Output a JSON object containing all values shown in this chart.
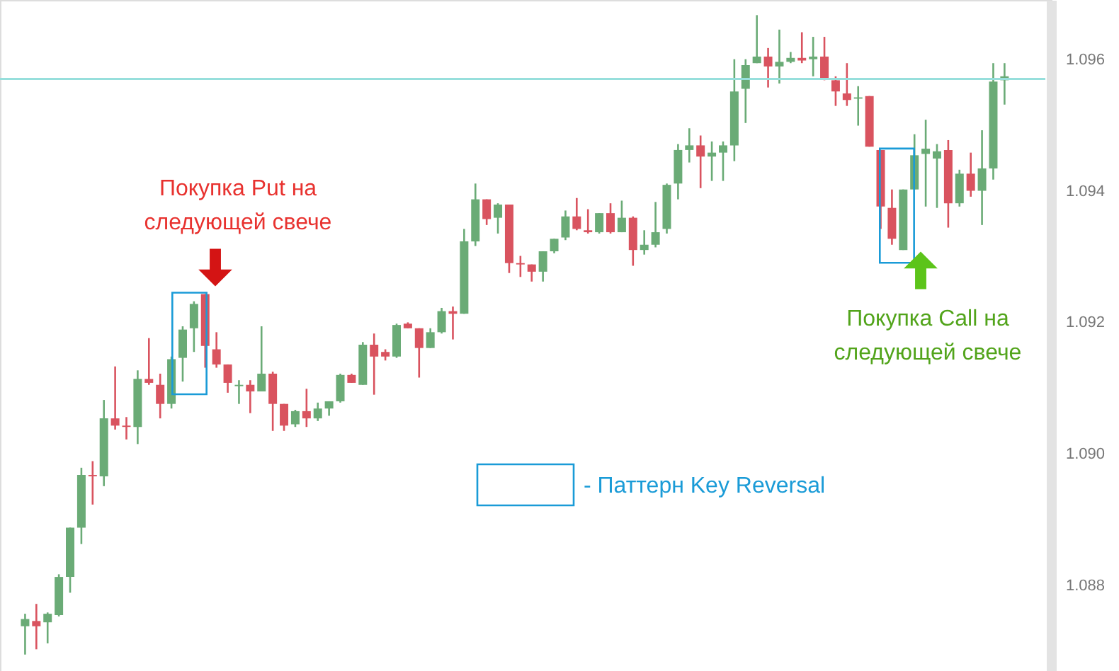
{
  "chart_data": {
    "type": "candlestick",
    "categories": [
      null,
      null,
      null,
      null,
      null,
      null,
      null,
      null,
      null,
      null,
      null,
      null,
      null,
      null,
      null,
      null,
      null,
      null,
      null,
      null,
      null,
      null,
      null,
      null,
      null,
      null,
      null,
      null,
      null,
      null,
      null,
      null,
      null,
      null,
      null,
      null,
      null,
      null,
      null,
      null,
      null,
      null,
      null,
      null,
      null,
      null,
      null,
      null,
      null,
      null,
      null,
      null,
      null,
      null,
      null,
      null,
      null,
      null,
      null,
      null,
      null,
      null,
      null,
      null,
      null,
      null,
      null,
      null,
      null,
      null,
      null,
      null,
      null,
      null,
      null,
      null,
      null,
      null,
      null,
      null,
      null,
      null,
      null,
      null,
      null,
      null,
      null,
      null
    ],
    "ohlc": [
      [
        1.08738,
        1.08757,
        1.08695,
        1.08749
      ],
      [
        1.08746,
        1.08772,
        1.08703,
        1.08738
      ],
      [
        1.08744,
        1.08759,
        1.08712,
        1.08757
      ],
      [
        1.08755,
        1.08817,
        1.08753,
        1.08813
      ],
      [
        1.08813,
        1.08888,
        1.08789,
        1.08888
      ],
      [
        1.08888,
        1.08979,
        1.08863,
        1.08968
      ],
      [
        1.08968,
        1.08989,
        1.08923,
        1.08966
      ],
      [
        1.08966,
        1.09082,
        1.08951,
        1.09054
      ],
      [
        1.09054,
        1.09133,
        1.09037,
        1.09043
      ],
      [
        1.09043,
        1.09056,
        1.09022,
        1.09041
      ],
      [
        1.09041,
        1.09127,
        1.09015,
        1.09114
      ],
      [
        1.09114,
        1.09176,
        1.09105,
        1.09108
      ],
      [
        1.09105,
        1.09122,
        1.09054,
        1.09076
      ],
      [
        1.09076,
        1.09148,
        1.09069,
        1.09144
      ],
      [
        1.09146,
        1.09194,
        1.0911,
        1.09189
      ],
      [
        1.09191,
        1.09232,
        1.09155,
        1.09228
      ],
      [
        1.09243,
        1.09243,
        1.09131,
        1.09164
      ],
      [
        1.09159,
        1.09185,
        1.09131,
        1.09136
      ],
      [
        1.09136,
        1.09136,
        1.09093,
        1.09108
      ],
      [
        1.09103,
        1.09112,
        1.09076,
        1.09105
      ],
      [
        1.09105,
        1.09112,
        1.09062,
        1.09095
      ],
      [
        1.09095,
        1.09194,
        1.09095,
        1.09122
      ],
      [
        1.09122,
        1.09125,
        1.09035,
        1.09076
      ],
      [
        1.09076,
        1.09076,
        1.09035,
        1.09043
      ],
      [
        1.09045,
        1.09067,
        1.09041,
        1.09065
      ],
      [
        1.09065,
        1.09099,
        1.09041,
        1.09054
      ],
      [
        1.09054,
        1.09078,
        1.0905,
        1.09069
      ],
      [
        1.09069,
        1.0908,
        1.09058,
        1.0908
      ],
      [
        1.0908,
        1.09122,
        1.09078,
        1.0912
      ],
      [
        1.0912,
        1.09122,
        1.09108,
        1.09108
      ],
      [
        1.09105,
        1.0917,
        1.09105,
        1.09166
      ],
      [
        1.09166,
        1.09183,
        1.0909,
        1.09148
      ],
      [
        1.09155,
        1.09159,
        1.09142,
        1.09148
      ],
      [
        1.09148,
        1.09198,
        1.09146,
        1.09196
      ],
      [
        1.09198,
        1.092,
        1.09191,
        1.09191
      ],
      [
        1.09191,
        1.09191,
        1.09116,
        1.09161
      ],
      [
        1.09161,
        1.09191,
        1.09161,
        1.09185
      ],
      [
        1.09185,
        1.09222,
        1.09183,
        1.09217
      ],
      [
        1.09217,
        1.09224,
        1.09174,
        1.09213
      ],
      [
        1.09213,
        1.09342,
        1.09213,
        1.09323
      ],
      [
        1.09323,
        1.09411,
        1.09316,
        1.09387
      ],
      [
        1.09387,
        1.09387,
        1.09348,
        1.09357
      ],
      [
        1.09359,
        1.09381,
        1.09335,
        1.09379
      ],
      [
        1.09379,
        1.09379,
        1.09275,
        1.0929
      ],
      [
        1.0929,
        1.09301,
        1.09269,
        1.09288
      ],
      [
        1.09288,
        1.09288,
        1.09262,
        1.09277
      ],
      [
        1.09277,
        1.09308,
        1.09262,
        1.09308
      ],
      [
        1.09308,
        1.09327,
        1.09305,
        1.09327
      ],
      [
        1.09329,
        1.0937,
        1.09325,
        1.09361
      ],
      [
        1.09361,
        1.09389,
        1.0934,
        1.09342
      ],
      [
        1.0934,
        1.09372,
        1.09335,
        1.09337
      ],
      [
        1.09337,
        1.09366,
        1.09335,
        1.09366
      ],
      [
        1.09366,
        1.09381,
        1.09335,
        1.09337
      ],
      [
        1.09337,
        1.09385,
        1.09337,
        1.09359
      ],
      [
        1.09359,
        1.09361,
        1.09286,
        1.0931
      ],
      [
        1.0931,
        1.0934,
        1.09303,
        1.09318
      ],
      [
        1.09318,
        1.09383,
        1.09314,
        1.09337
      ],
      [
        1.09342,
        1.09411,
        1.09335,
        1.09409
      ],
      [
        1.09411,
        1.09471,
        1.09387,
        1.09462
      ],
      [
        1.09462,
        1.09495,
        1.09443,
        1.09469
      ],
      [
        1.09469,
        1.09484,
        1.09404,
        1.09452
      ],
      [
        1.09452,
        1.09475,
        1.09415,
        1.09458
      ],
      [
        1.09458,
        1.09475,
        1.09415,
        1.09469
      ],
      [
        1.09469,
        1.096,
        1.09445,
        1.09551
      ],
      [
        1.09555,
        1.096,
        1.09503,
        1.09591
      ],
      [
        1.09594,
        1.09667,
        1.09594,
        1.09604
      ],
      [
        1.09604,
        1.09617,
        1.09557,
        1.09589
      ],
      [
        1.09589,
        1.09645,
        1.09563,
        1.09596
      ],
      [
        1.09596,
        1.09611,
        1.09594,
        1.09602
      ],
      [
        1.09602,
        1.09641,
        1.09594,
        1.09598
      ],
      [
        1.096,
        1.09634,
        1.09574,
        1.09604
      ],
      [
        1.09604,
        1.09634,
        1.09568,
        1.0957
      ],
      [
        1.09568,
        1.09574,
        1.09529,
        1.09551
      ],
      [
        1.09548,
        1.09594,
        1.09529,
        1.09538
      ],
      [
        1.0954,
        1.09559,
        1.09499,
        1.09542
      ],
      [
        1.09544,
        1.09544,
        1.09467,
        1.09467
      ],
      [
        1.09462,
        1.09462,
        1.09342,
        1.09376
      ],
      [
        1.09374,
        1.09402,
        1.09318,
        1.09327
      ],
      [
        1.0931,
        1.09402,
        1.0931,
        1.09402
      ],
      [
        1.09402,
        1.09486,
        1.09402,
        1.09454
      ],
      [
        1.09456,
        1.09508,
        1.09376,
        1.09464
      ],
      [
        1.09449,
        1.09471,
        1.09374,
        1.0946
      ],
      [
        1.09462,
        1.09477,
        1.09344,
        1.09381
      ],
      [
        1.09381,
        1.09432,
        1.09376,
        1.09426
      ],
      [
        1.09426,
        1.09458,
        1.09391,
        1.094
      ],
      [
        1.094,
        1.09492,
        1.09348,
        1.09434
      ],
      [
        1.09434,
        1.09594,
        1.09417,
        1.09566
      ],
      [
        1.09568,
        1.09594,
        1.09531,
        1.09574
      ]
    ],
    "colors": [
      "#6aab76",
      "#d9535f",
      "#6aab76",
      "#6aab76",
      "#6aab76",
      "#6aab76",
      "#d9535f",
      "#6aab76",
      "#d9535f",
      "#d9535f",
      "#6aab76",
      "#d9535f",
      "#d9535f",
      "#6aab76",
      "#6aab76",
      "#6aab76",
      "#d9535f",
      "#d9535f",
      "#d9535f",
      "#6aab76",
      "#d9535f",
      "#6aab76",
      "#d9535f",
      "#d9535f",
      "#6aab76",
      "#d9535f",
      "#6aab76",
      "#6aab76",
      "#6aab76",
      "#d9535f",
      "#6aab76",
      "#d9535f",
      "#d9535f",
      "#6aab76",
      "#d9535f",
      "#d9535f",
      "#6aab76",
      "#6aab76",
      "#d9535f",
      "#6aab76",
      "#6aab76",
      "#d9535f",
      "#6aab76",
      "#d9535f",
      "#d9535f",
      "#d9535f",
      "#6aab76",
      "#6aab76",
      "#6aab76",
      "#d9535f",
      "#d9535f",
      "#6aab76",
      "#d9535f",
      "#6aab76",
      "#d9535f",
      "#6aab76",
      "#6aab76",
      "#6aab76",
      "#6aab76",
      "#6aab76",
      "#d9535f",
      "#6aab76",
      "#6aab76",
      "#6aab76",
      "#6aab76",
      "#6aab76",
      "#d9535f",
      "#6aab76",
      "#6aab76",
      "#d9535f",
      "#6aab76",
      "#d9535f",
      "#d9535f",
      "#d9535f",
      "#6aab76",
      "#d9535f",
      "#d9535f",
      "#d9535f",
      "#6aab76",
      "#6aab76",
      "#6aab76",
      "#6aab76",
      "#d9535f",
      "#6aab76",
      "#d9535f",
      "#6aab76",
      "#6aab76",
      "#6aab76"
    ],
    "ylim": [
      1.0867,
      1.0969
    ],
    "yticks": [
      1.088,
      {
        "value": 1.09,
        "label": "1.090"
      },
      1.092,
      1.094,
      1.096
    ],
    "grid": false,
    "ref_lines": [
      {
        "axis": "y",
        "value": 1.0957,
        "color": "#97dfdc"
      }
    ],
    "annotations": [
      "Покупка Put на следующей свече",
      "Покупка Call на следующей свече",
      "- Паттерн Key Reversal"
    ]
  }
}
